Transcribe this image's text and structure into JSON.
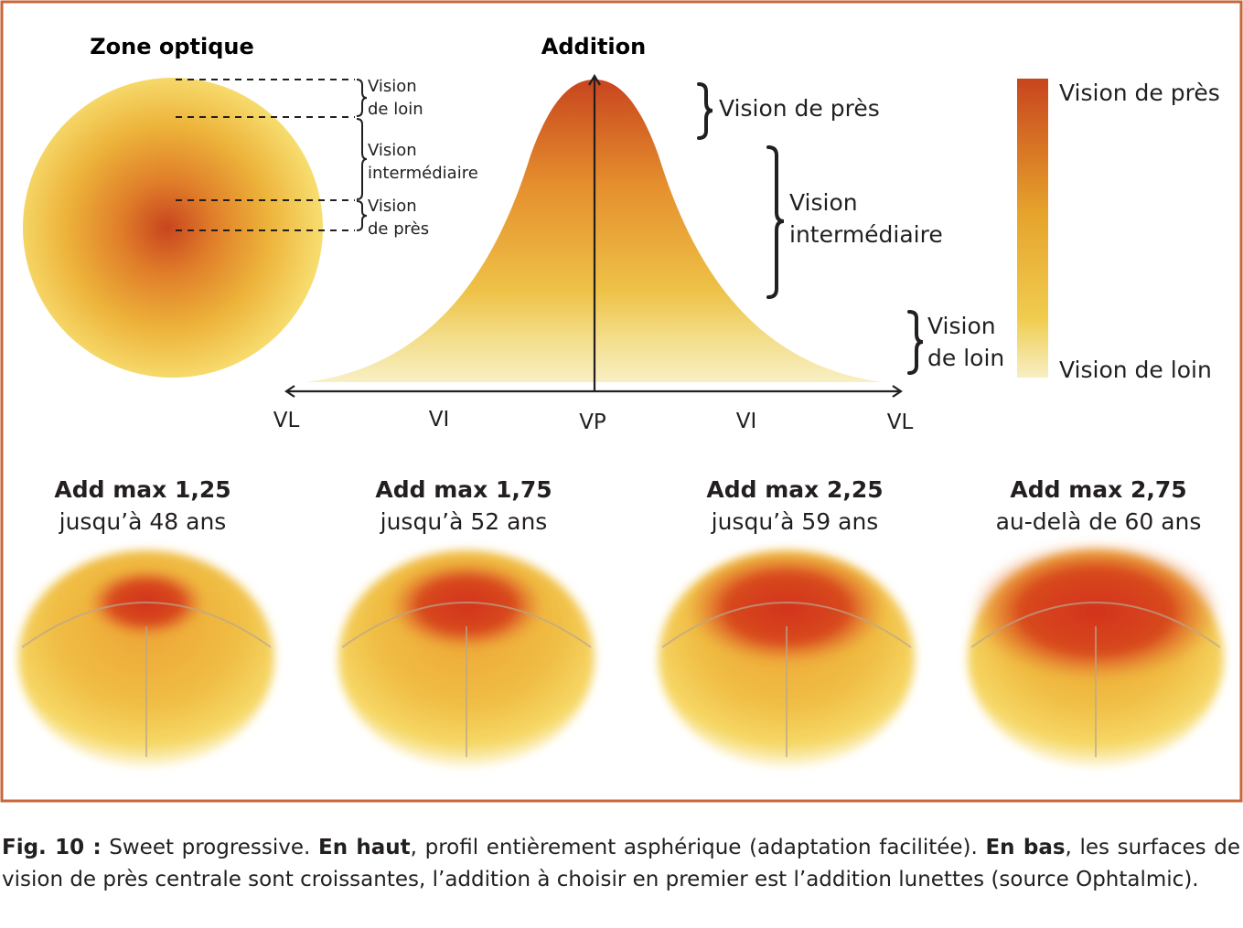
{
  "optical_zone": {
    "title": "Zone optique",
    "labels": [
      {
        "l1": "Vision",
        "l2": "de loin"
      },
      {
        "l1": "Vision",
        "l2": "intermédiaire"
      },
      {
        "l1": "Vision",
        "l2": "de près"
      }
    ]
  },
  "addition_chart": {
    "title": "Addition",
    "axis_labels": [
      "VL",
      "VI",
      "VP",
      "VI",
      "VL"
    ],
    "near_label": "Vision de près",
    "intermediate_label": {
      "l1": "Vision",
      "l2": "intermédiaire"
    },
    "far_label": {
      "l1": "Vision",
      "l2": "de loin"
    }
  },
  "legend": {
    "top_label": "Vision de près",
    "bottom_label": "Vision de loin",
    "color_top": "#c8451e",
    "color_mid": "#e6a32c",
    "color_bottom": "#f7efc4"
  },
  "lenses": [
    {
      "title": "Add max 1,25",
      "subtitle": "jusqu’à 48 ans",
      "near_zone": 0.2
    },
    {
      "title": "Add max 1,75",
      "subtitle": "jusqu’à 52 ans",
      "near_zone": 0.34
    },
    {
      "title": "Add max 2,25",
      "subtitle": "jusqu’à 59 ans",
      "near_zone": 0.5
    },
    {
      "title": "Add max 2,75",
      "subtitle": "au-delà de 60 ans",
      "near_zone": 0.68
    }
  ],
  "frame_color": "#c8673a",
  "caption": {
    "label": "Fig. 10 :",
    "t1": " Sweet progressive. ",
    "b1": "En haut",
    "t2": ", profil entièrement asphérique (adaptation facilitée). ",
    "b2": "En bas",
    "t3": ", les surfaces de vision de près centrale sont croissantes, l’addition à choisir en premier est l’addition lunettes (source Ophtalmic)."
  }
}
